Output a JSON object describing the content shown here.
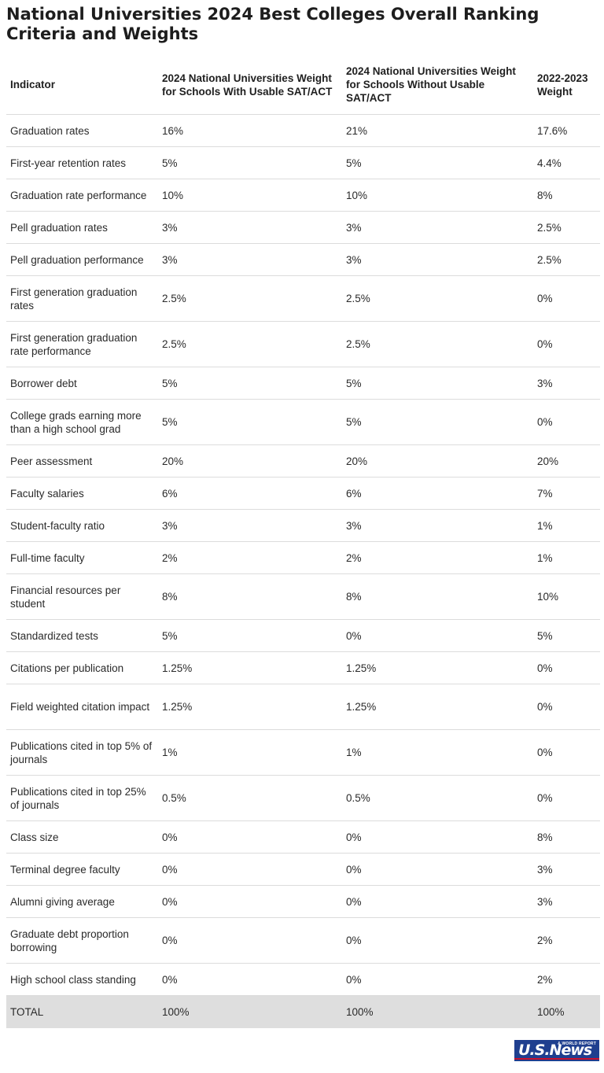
{
  "title": "National Universities 2024 Best Colleges Overall Ranking Criteria and Weights",
  "headers": [
    "Indicator",
    "2024 National Universities Weight for Schools With Usable SAT/ACT",
    "2024 National Universities Weight for Schools Without Usable SAT/ACT",
    "2022-2023 Weight"
  ],
  "rows": [
    [
      "Graduation rates",
      "16%",
      "21%",
      "17.6%"
    ],
    [
      "First-year retention rates",
      "5%",
      "5%",
      "4.4%"
    ],
    [
      "Graduation rate performance",
      "10%",
      "10%",
      "8%"
    ],
    [
      "Pell graduation rates",
      "3%",
      "3%",
      "2.5%"
    ],
    [
      "Pell graduation performance",
      "3%",
      "3%",
      "2.5%"
    ],
    [
      "First generation graduation rates",
      "2.5%",
      "2.5%",
      "0%"
    ],
    [
      "First generation graduation rate performance",
      "2.5%",
      "2.5%",
      "0%"
    ],
    [
      "Borrower debt",
      "5%",
      "5%",
      "3%"
    ],
    [
      "College grads earning more than a high school grad",
      "5%",
      "5%",
      "0%"
    ],
    [
      "Peer assessment",
      "20%",
      "20%",
      "20%"
    ],
    [
      "Faculty salaries",
      "6%",
      "6%",
      "7%"
    ],
    [
      "Student-faculty ratio",
      "3%",
      "3%",
      "1%"
    ],
    [
      "Full-time faculty",
      "2%",
      "2%",
      "1%"
    ],
    [
      "Financial resources per student",
      "8%",
      "8%",
      "10%"
    ],
    [
      "Standardized tests",
      "5%",
      "0%",
      "5%"
    ],
    [
      "Citations per publication",
      "1.25%",
      "1.25%",
      "0%"
    ],
    [
      "Field weighted citation impact",
      "1.25%",
      "1.25%",
      "0%"
    ],
    [
      "Publications cited in top 5% of journals",
      "1%",
      "1%",
      "0%"
    ],
    [
      "Publications cited in top 25% of journals",
      "0.5%",
      "0.5%",
      "0%"
    ],
    [
      "Class size",
      "0%",
      "0%",
      "8%"
    ],
    [
      "Terminal degree faculty",
      "0%",
      "0%",
      "3%"
    ],
    [
      "Alumni giving average",
      "0%",
      "0%",
      "3%"
    ],
    [
      "Graduate debt proportion borrowing",
      "0%",
      "0%",
      "2%"
    ],
    [
      "High school class standing",
      "0%",
      "0%",
      "2%"
    ]
  ],
  "total": [
    "TOTAL",
    "100%",
    "100%",
    "100%"
  ],
  "brand": {
    "logo_text": "U.S.News",
    "logo_small": "& WORLD REPORT",
    "primary_color": "#1f3f8f",
    "accent_color": "#c8102e"
  }
}
